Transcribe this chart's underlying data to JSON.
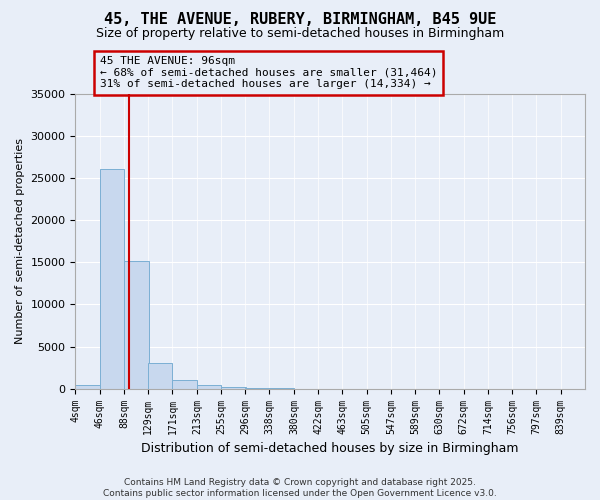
{
  "title": "45, THE AVENUE, RUBERY, BIRMINGHAM, B45 9UE",
  "subtitle": "Size of property relative to semi-detached houses in Birmingham",
  "xlabel": "Distribution of semi-detached houses by size in Birmingham",
  "ylabel": "Number of semi-detached properties",
  "bin_labels": [
    "4sqm",
    "46sqm",
    "88sqm",
    "129sqm",
    "171sqm",
    "213sqm",
    "255sqm",
    "296sqm",
    "338sqm",
    "380sqm",
    "422sqm",
    "463sqm",
    "505sqm",
    "547sqm",
    "589sqm",
    "630sqm",
    "672sqm",
    "714sqm",
    "756sqm",
    "797sqm",
    "839sqm"
  ],
  "bin_edges": [
    4,
    46,
    88,
    129,
    171,
    213,
    255,
    296,
    338,
    380,
    422,
    463,
    505,
    547,
    589,
    630,
    672,
    714,
    756,
    797,
    839
  ],
  "bar_heights": [
    400,
    26100,
    15100,
    3050,
    1050,
    480,
    175,
    65,
    30,
    15,
    8,
    5,
    3,
    2,
    2,
    1,
    1,
    0,
    0,
    0
  ],
  "bar_color": "#c8d8ee",
  "bar_edge_color": "#7bafd4",
  "vline_color": "#cc0000",
  "vline_x": 96,
  "annotation_title": "45 THE AVENUE: 96sqm",
  "annotation_line1": "← 68% of semi-detached houses are smaller (31,464)",
  "annotation_line2": "31% of semi-detached houses are larger (14,334) →",
  "ylim": [
    0,
    35000
  ],
  "yticks": [
    0,
    5000,
    10000,
    15000,
    20000,
    25000,
    30000,
    35000
  ],
  "background_color": "#e8eef8",
  "grid_color": "#ffffff",
  "footer1": "Contains HM Land Registry data © Crown copyright and database right 2025.",
  "footer2": "Contains public sector information licensed under the Open Government Licence v3.0."
}
